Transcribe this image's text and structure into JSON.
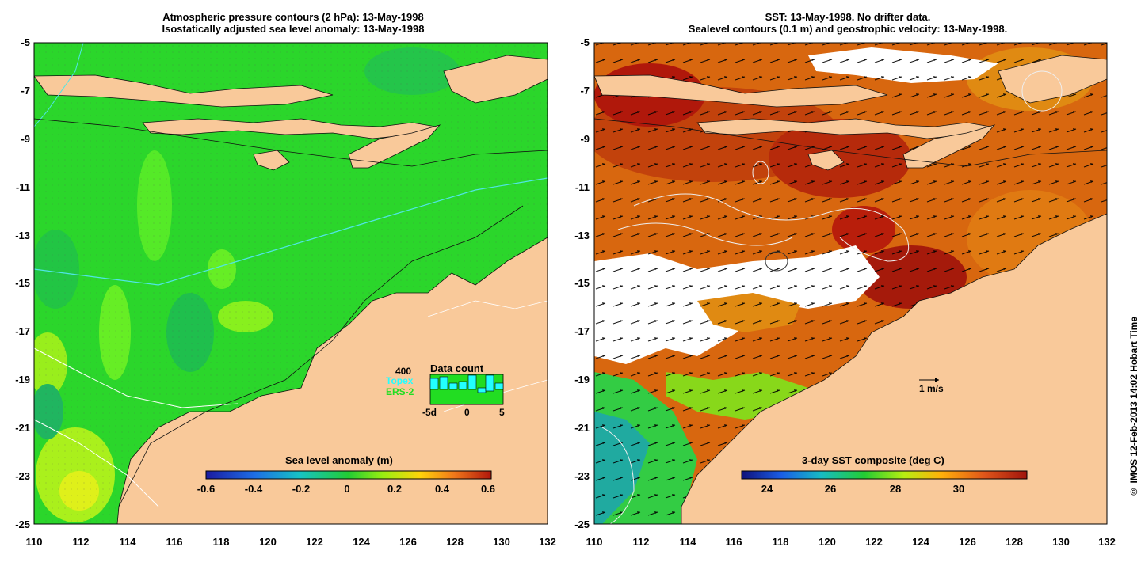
{
  "left_panel": {
    "title_line1": "Atmospheric pressure contours (2 hPa): 13-May-1998",
    "title_line2": "Isostatically adjusted sea level anomaly: 13-May-1998",
    "colorbar_title": "Sea level anomaly (m)",
    "colorbar_ticks": [
      "-0.6",
      "-0.4",
      "-0.2",
      "0",
      "0.2",
      "0.4",
      "0.6"
    ],
    "inset": {
      "count_label": "400",
      "title": "Data count",
      "topex_label": "Topex",
      "ers_label": "ERS-2",
      "axis_labels": [
        "-5d",
        "0",
        "5"
      ],
      "topex_color": "#22ffff",
      "ers_color": "#22dd22"
    }
  },
  "right_panel": {
    "title_line1": "SST: 13-May-1998. No drifter data.",
    "title_line2": "Sealevel contours (0.1 m) and geostrophic velocity: 13-May-1998.",
    "colorbar_title": "3-day SST composite (deg C)",
    "colorbar_ticks": [
      "24",
      "26",
      "28",
      "30"
    ],
    "scale_label": "1 m/s"
  },
  "axes": {
    "lat_ticks": [
      "-5",
      "-7",
      "-9",
      "-11",
      "-13",
      "-15",
      "-17",
      "-19",
      "-21",
      "-23",
      "-25"
    ],
    "lon_ticks_left": [
      "110",
      "112",
      "114",
      "116",
      "118",
      "120",
      "122",
      "124",
      "126",
      "128",
      "130",
      "132"
    ],
    "lon_ticks_right": [
      "110",
      "112",
      "114",
      "116",
      "118",
      "120",
      "122",
      "124",
      "126",
      "128",
      "130",
      "132"
    ]
  },
  "colors": {
    "land": "#f9c99a",
    "ocean_green": "#2ad82a",
    "ocean_bright": "#6eef1e",
    "sst_red": "#b81a0a",
    "sst_orange": "#d8670f"
  },
  "credit": "© IMOS 12-Feb-2013 14:02 Hobart Time"
}
